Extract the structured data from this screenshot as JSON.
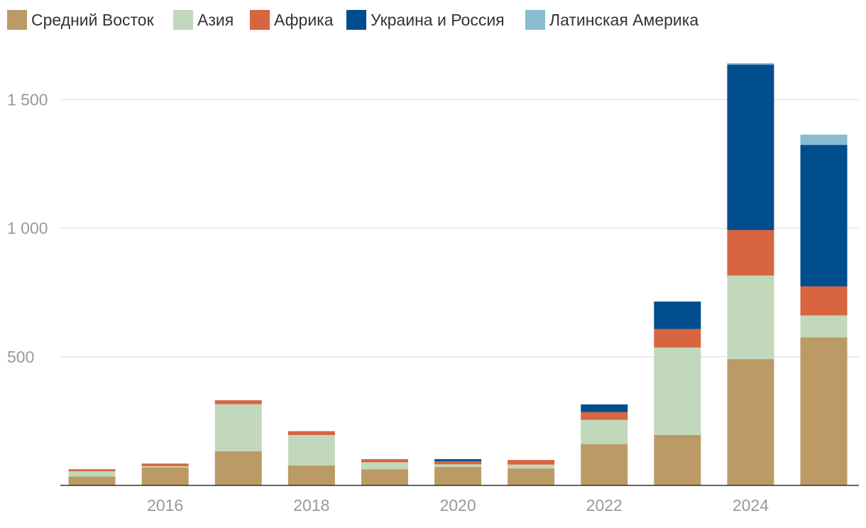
{
  "chart_data": {
    "type": "bar",
    "stacked": true,
    "title": "",
    "xlabel": "",
    "ylabel": "",
    "ylim": [
      0,
      1650
    ],
    "y_ticks": [
      500,
      1000,
      1500
    ],
    "y_tick_labels": [
      "500",
      "1 000",
      "1 500"
    ],
    "x_ticks": [
      2016,
      2018,
      2020,
      2022,
      2024
    ],
    "x_tick_labels": [
      "2016",
      "2018",
      "2020",
      "2022",
      "2024"
    ],
    "grid": "horizontal",
    "legend_position": "top-left",
    "categories": [
      2015,
      2016,
      2017,
      2018,
      2019,
      2020,
      2021,
      2022,
      2023,
      2024,
      2025
    ],
    "series": [
      {
        "name": "Средний Восток",
        "color": "#bb9a65",
        "values": [
          35,
          70,
          133,
          78,
          63,
          72,
          66,
          160,
          196,
          491,
          576
        ]
      },
      {
        "name": "Азия",
        "color": "#c1d8bc",
        "values": [
          20,
          5,
          183,
          118,
          27,
          10,
          15,
          95,
          340,
          325,
          85
        ]
      },
      {
        "name": "Африка",
        "color": "#d86440",
        "values": [
          8,
          10,
          15,
          15,
          12,
          12,
          18,
          30,
          72,
          177,
          113
        ]
      },
      {
        "name": "Украина и Россия",
        "color": "#004d8e",
        "values": [
          0,
          0,
          0,
          0,
          0,
          8,
          0,
          30,
          107,
          643,
          550
        ]
      },
      {
        "name": "Латинская Америка",
        "color": "#88bccf",
        "values": [
          0,
          0,
          0,
          0,
          0,
          0,
          0,
          0,
          0,
          6,
          40
        ]
      }
    ]
  }
}
